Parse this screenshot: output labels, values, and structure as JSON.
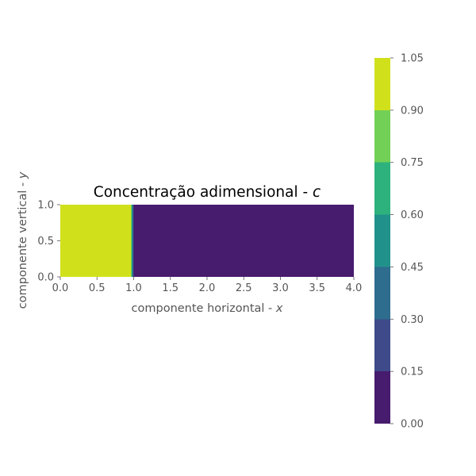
{
  "chart_data": {
    "type": "heatmap",
    "title": "Concentração adimensional - ",
    "title_var": "c",
    "xlabel": "componente horizontal - ",
    "xlabel_var": "x",
    "ylabel": "componente vertical - ",
    "ylabel_var": "y",
    "xlim": [
      0.0,
      4.0
    ],
    "ylim": [
      0.0,
      1.0
    ],
    "xticks": [
      0.0,
      0.5,
      1.0,
      1.5,
      2.0,
      2.5,
      3.0,
      3.5,
      4.0
    ],
    "xtick_labels": [
      "0.0",
      "0.5",
      "1.0",
      "1.5",
      "2.0",
      "2.5",
      "3.0",
      "3.5",
      "4.0"
    ],
    "yticks": [
      0.0,
      0.5,
      1.0
    ],
    "ytick_labels": [
      "0.0",
      "0.5",
      "1.0"
    ],
    "grid": false,
    "regions": [
      {
        "x_start": 0.0,
        "x_end": 0.96,
        "value": 1.0
      },
      {
        "x_start": 0.96,
        "x_end": 0.975,
        "value": 0.85
      },
      {
        "x_start": 0.975,
        "x_end": 0.99,
        "value": 0.55
      },
      {
        "x_start": 0.99,
        "x_end": 1.0,
        "value": 0.25
      },
      {
        "x_start": 1.0,
        "x_end": 4.0,
        "value": 0.0
      }
    ],
    "colorbar": {
      "levels": [
        0.0,
        0.15,
        0.3,
        0.45,
        0.6,
        0.75,
        0.9,
        1.05
      ],
      "tick_labels": [
        "0.00",
        "0.15",
        "0.30",
        "0.45",
        "0.60",
        "0.75",
        "0.90",
        "1.05"
      ],
      "colors": [
        "#471b6e",
        "#3f4a8a",
        "#2e6d8e",
        "#21918c",
        "#2db27d",
        "#73d056",
        "#d0e11c"
      ]
    }
  }
}
